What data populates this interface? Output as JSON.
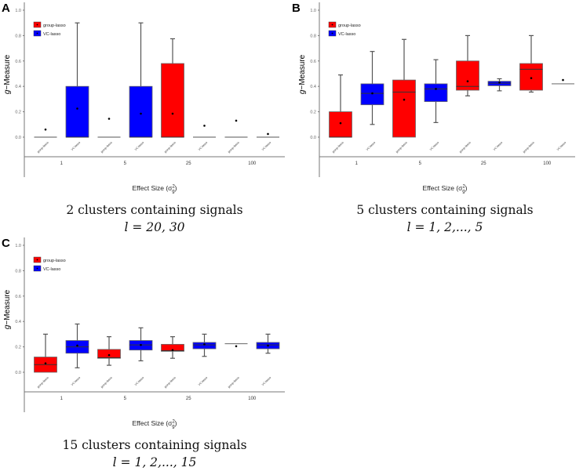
{
  "chart_data": [
    {
      "type": "box",
      "panel_label": "A",
      "ylabel_italic": "g",
      "ylabel_rest": "−Measure",
      "xlabel_main": "Effect Size (σ",
      "xlabel_sup": "2",
      "xlabel_sub": "g",
      "xlabel_close": ")",
      "ylim": [
        0,
        1
      ],
      "yticks": [
        "0.0",
        "0.2",
        "0.4",
        "0.6",
        "0.8",
        "1.0"
      ],
      "legend": [
        "group-lasso",
        "VC-lasso"
      ],
      "caption_line1": "2 clusters containing signals",
      "caption_line2": "l = 20, 30",
      "groups": [
        "1",
        "5",
        "25",
        "100"
      ],
      "boxes": [
        {
          "group": "1",
          "method": "group-lasso",
          "min": 0,
          "q1": 0,
          "median": 0,
          "q3": 0,
          "max": 0,
          "mean": 0.06
        },
        {
          "group": "1",
          "method": "VC-lasso",
          "min": 0,
          "q1": 0,
          "median": 0,
          "q3": 0.4,
          "max": 0.9,
          "mean": 0.225
        },
        {
          "group": "5",
          "method": "group-lasso",
          "min": 0,
          "q1": 0,
          "median": 0,
          "q3": 0,
          "max": 0,
          "mean": 0.145
        },
        {
          "group": "5",
          "method": "VC-lasso",
          "min": 0,
          "q1": 0,
          "median": 0,
          "q3": 0.4,
          "max": 0.9,
          "mean": 0.185
        },
        {
          "group": "25",
          "method": "group-lasso",
          "min": 0,
          "q1": 0,
          "median": 0,
          "q3": 0.58,
          "max": 0.775,
          "mean": 0.185
        },
        {
          "group": "25",
          "method": "VC-lasso",
          "min": 0,
          "q1": 0,
          "median": 0,
          "q3": 0,
          "max": 0,
          "mean": 0.09
        },
        {
          "group": "100",
          "method": "group-lasso",
          "min": 0,
          "q1": 0,
          "median": 0,
          "q3": 0,
          "max": 0,
          "mean": 0.13
        },
        {
          "group": "100",
          "method": "VC-lasso",
          "min": 0,
          "q1": 0,
          "median": 0,
          "q3": 0,
          "max": 0,
          "mean": 0.025
        }
      ]
    },
    {
      "type": "box",
      "panel_label": "B",
      "ylabel_italic": "g",
      "ylabel_rest": "−Measure",
      "xlabel_main": "Effect Size (σ",
      "xlabel_sup": "2",
      "xlabel_sub": "g",
      "xlabel_close": ")",
      "ylim": [
        0,
        1
      ],
      "yticks": [
        "0.0",
        "0.2",
        "0.4",
        "0.6",
        "0.8",
        "1.0"
      ],
      "legend": [
        "group-lasso",
        "VC-lasso"
      ],
      "caption_line1": "5 clusters containing signals",
      "caption_line2": "l = 1, 2,..., 5",
      "groups": [
        "1",
        "5",
        "25",
        "100"
      ],
      "boxes": [
        {
          "group": "1",
          "method": "group-lasso",
          "min": 0,
          "q1": 0,
          "median": 0,
          "q3": 0.2,
          "max": 0.49,
          "mean": 0.11
        },
        {
          "group": "1",
          "method": "VC-lasso",
          "min": 0.1,
          "q1": 0.255,
          "median": 0.345,
          "q3": 0.42,
          "max": 0.675,
          "mean": 0.345
        },
        {
          "group": "5",
          "method": "group-lasso",
          "min": 0,
          "q1": 0,
          "median": 0.355,
          "q3": 0.45,
          "max": 0.77,
          "mean": 0.295
        },
        {
          "group": "5",
          "method": "VC-lasso",
          "min": 0.115,
          "q1": 0.28,
          "median": 0.38,
          "q3": 0.42,
          "max": 0.61,
          "mean": 0.38
        },
        {
          "group": "25",
          "method": "group-lasso",
          "min": 0.325,
          "q1": 0.37,
          "median": 0.4,
          "q3": 0.6,
          "max": 0.8,
          "mean": 0.44
        },
        {
          "group": "25",
          "method": "VC-lasso",
          "min": 0.365,
          "q1": 0.405,
          "median": 0.425,
          "q3": 0.44,
          "max": 0.46,
          "mean": 0.43
        },
        {
          "group": "100",
          "method": "group-lasso",
          "min": 0.355,
          "q1": 0.37,
          "median": 0.535,
          "q3": 0.58,
          "max": 0.8,
          "mean": 0.465
        },
        {
          "group": "100",
          "method": "VC-lasso",
          "min": 0.42,
          "q1": 0.42,
          "median": 0.42,
          "q3": 0.42,
          "max": 0.42,
          "mean": 0.45
        }
      ]
    },
    {
      "type": "box",
      "panel_label": "C",
      "ylabel_italic": "g",
      "ylabel_rest": "−Measure",
      "xlabel_main": "Effect Size (σ",
      "xlabel_sup": "2",
      "xlabel_sub": "g",
      "xlabel_close": ")",
      "ylim": [
        0,
        1
      ],
      "yticks": [
        "0.0",
        "0.2",
        "0.4",
        "0.6",
        "0.8",
        "1.0"
      ],
      "legend": [
        "group-lasso",
        "VC-lasso"
      ],
      "caption_line1": "15 clusters containing signals",
      "caption_line2": "l = 1, 2,..., 15",
      "groups": [
        "1",
        "5",
        "25",
        "100"
      ],
      "boxes": [
        {
          "group": "1",
          "method": "group-lasso",
          "min": 0,
          "q1": 0,
          "median": 0.06,
          "q3": 0.12,
          "max": 0.3,
          "mean": 0.07
        },
        {
          "group": "1",
          "method": "VC-lasso",
          "min": 0.035,
          "q1": 0.15,
          "median": 0.2,
          "q3": 0.25,
          "max": 0.38,
          "mean": 0.21
        },
        {
          "group": "5",
          "method": "group-lasso",
          "min": 0.055,
          "q1": 0.11,
          "median": 0.115,
          "q3": 0.18,
          "max": 0.28,
          "mean": 0.135
        },
        {
          "group": "5",
          "method": "VC-lasso",
          "min": 0.09,
          "q1": 0.175,
          "median": 0.215,
          "q3": 0.25,
          "max": 0.35,
          "mean": 0.215
        },
        {
          "group": "25",
          "method": "group-lasso",
          "min": 0.11,
          "q1": 0.165,
          "median": 0.17,
          "q3": 0.22,
          "max": 0.28,
          "mean": 0.175
        },
        {
          "group": "25",
          "method": "VC-lasso",
          "min": 0.125,
          "q1": 0.185,
          "median": 0.215,
          "q3": 0.235,
          "max": 0.3,
          "mean": 0.22
        },
        {
          "group": "100",
          "method": "group-lasso",
          "min": 0.225,
          "q1": 0.225,
          "median": 0.225,
          "q3": 0.225,
          "max": 0.225,
          "mean": 0.205
        },
        {
          "group": "100",
          "method": "VC-lasso",
          "min": 0.15,
          "q1": 0.185,
          "median": 0.215,
          "q3": 0.235,
          "max": 0.3,
          "mean": 0.21
        }
      ]
    }
  ],
  "colors": {
    "group-lasso": "#ff0000",
    "VC-lasso": "#0000ff",
    "axis": "#777777",
    "whisker": "#555555"
  }
}
